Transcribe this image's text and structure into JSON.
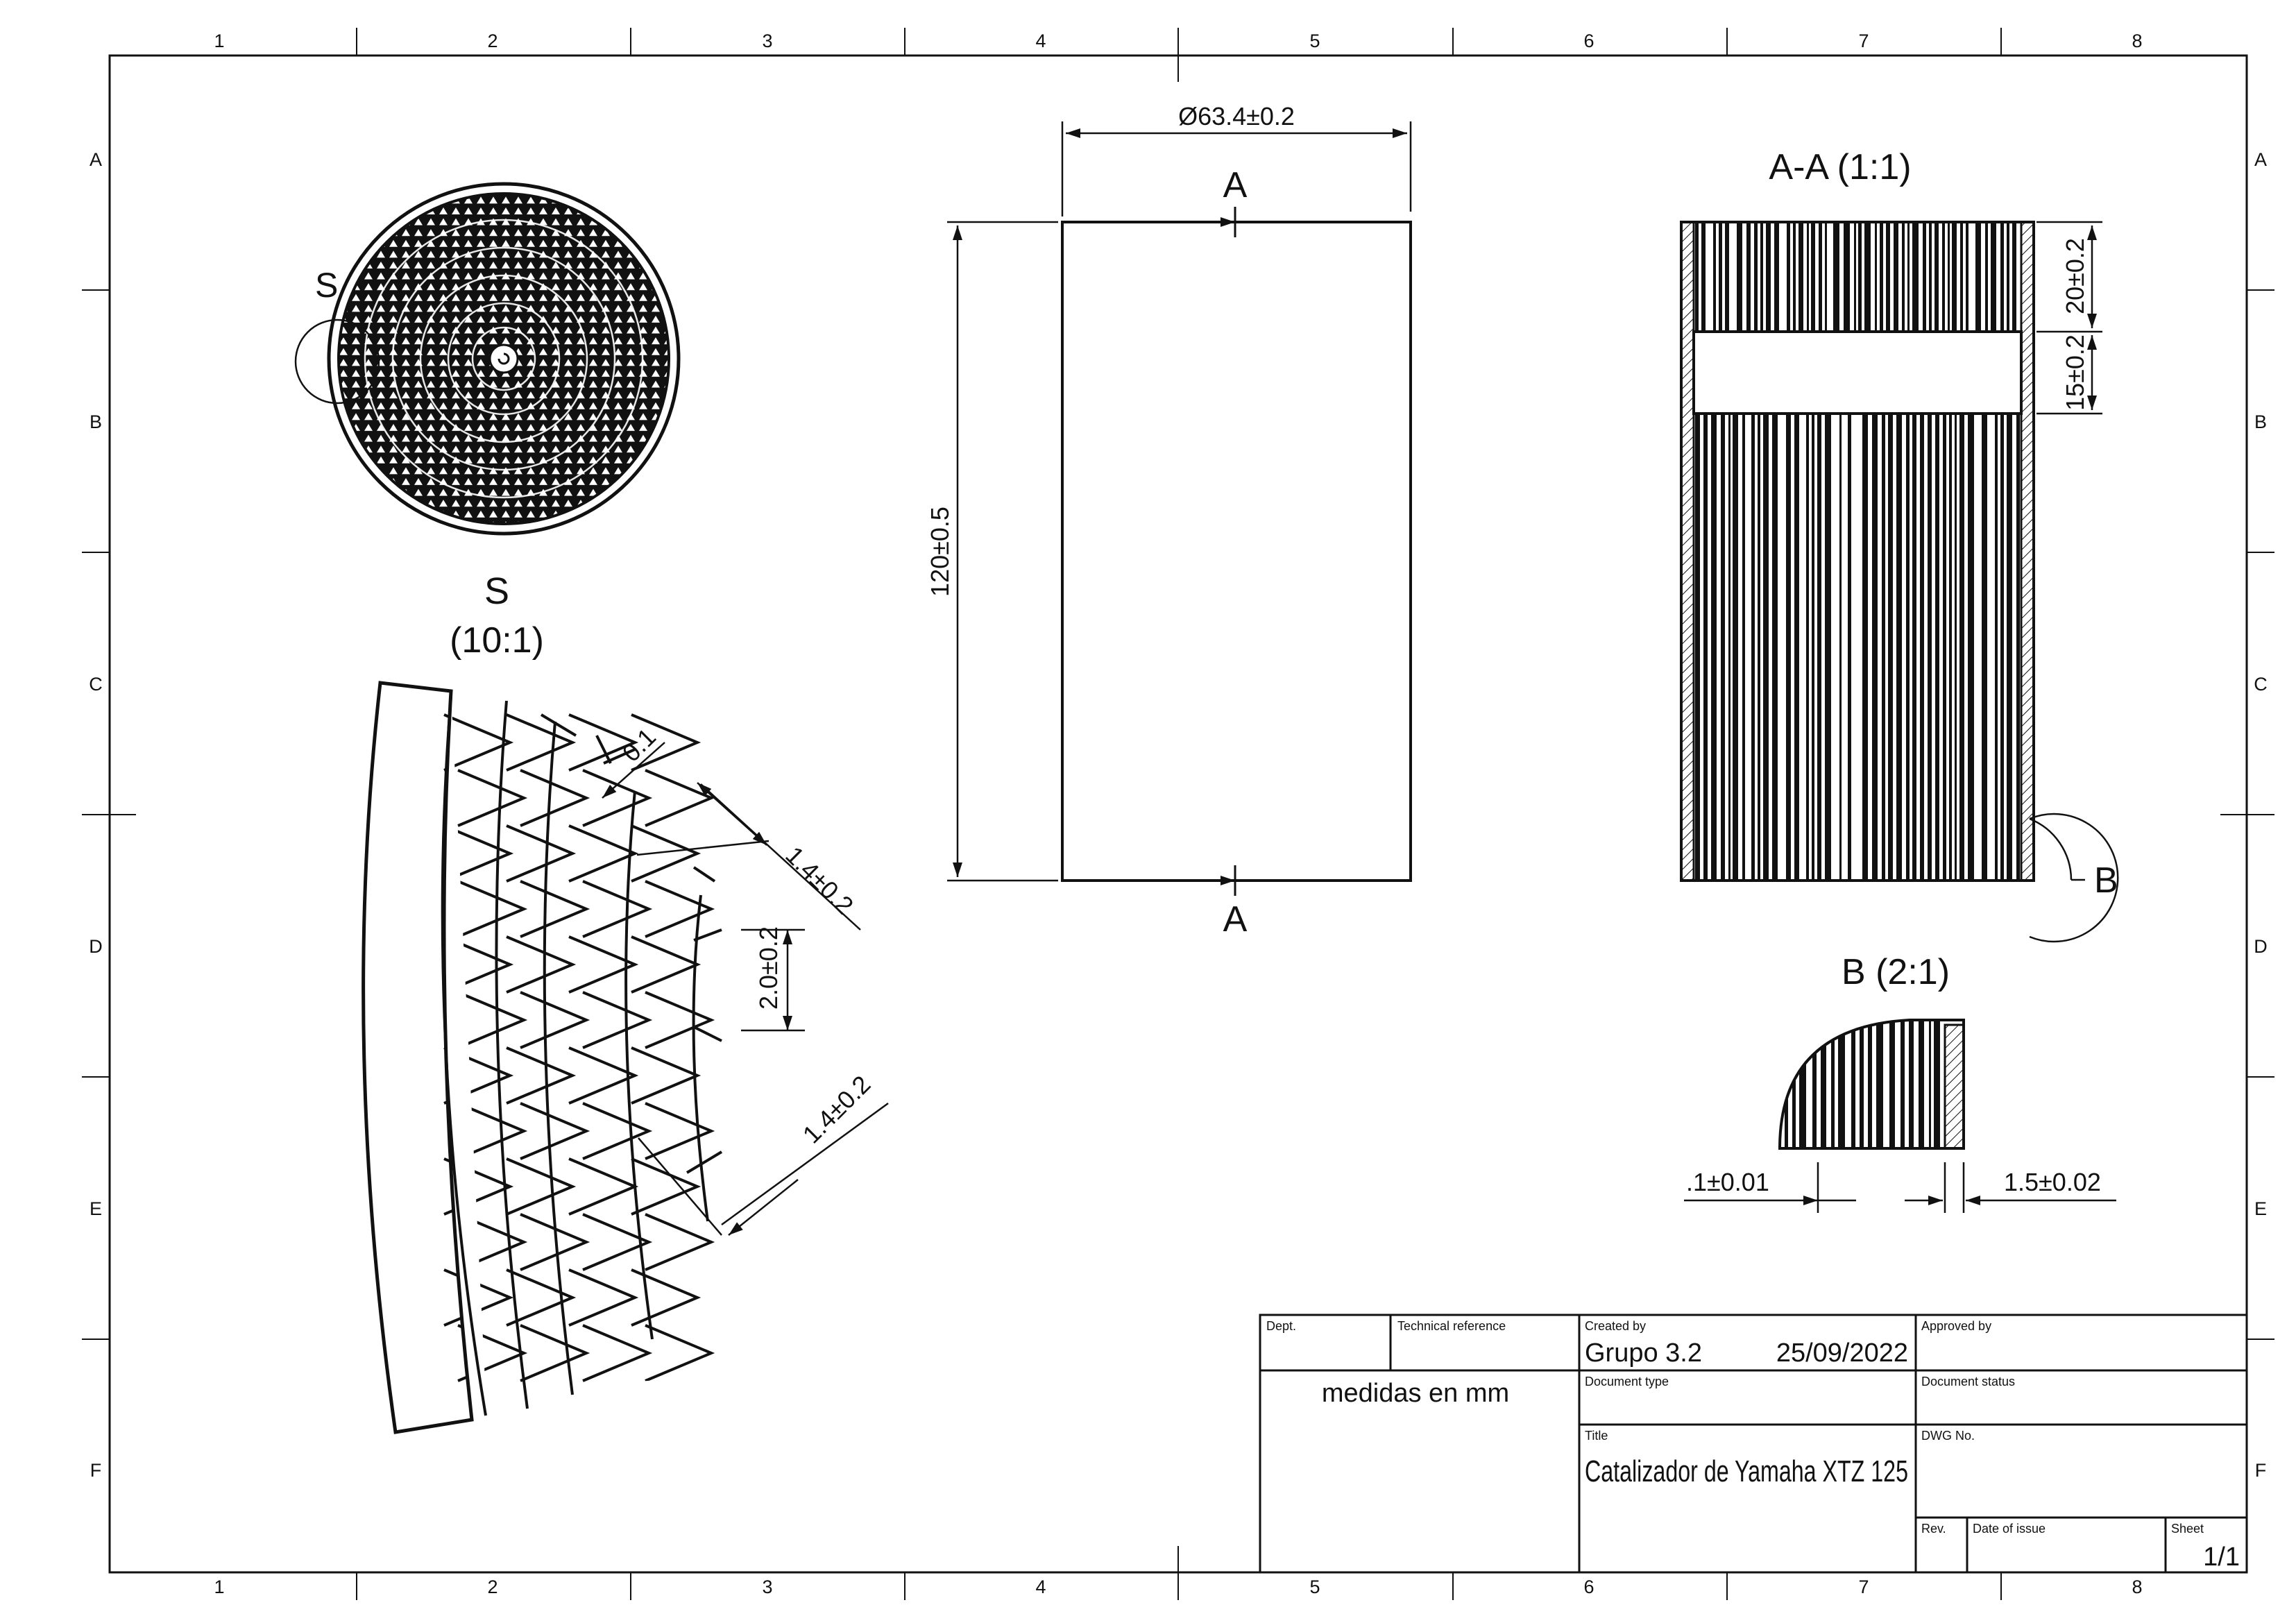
{
  "frame": {
    "columns": [
      "1",
      "2",
      "3",
      "4",
      "5",
      "6",
      "7",
      "8"
    ],
    "rows": [
      "A",
      "B",
      "C",
      "D",
      "E",
      "F"
    ]
  },
  "views": {
    "front": {
      "diameter_dim": "Ø63.4±0.2",
      "height_dim": "120±0.5",
      "section_label_top": "A",
      "section_label_bottom": "A"
    },
    "top": {
      "detail_marker": "S"
    },
    "detail_s": {
      "title_letter": "S",
      "scale": "(10:1)",
      "dim_wall": "0.1",
      "dim_cell_upper": "1.4±0.2",
      "dim_pitch": "2.0±0.2",
      "dim_cell_lower": "1.4±0.2"
    },
    "section_aa": {
      "title": "A-A (1:1)",
      "dim_top": "20±0.2",
      "dim_gap": "15±0.2",
      "detail_marker": "B"
    },
    "detail_b": {
      "title": "B (2:1)",
      "dim_left": ".1±0.01",
      "dim_right": "1.5±0.02"
    }
  },
  "title_block": {
    "dept_label": "Dept.",
    "tech_ref_label": "Technical reference",
    "created_by_label": "Created by",
    "created_by": "Grupo 3.2",
    "date": "25/09/2022",
    "approved_by_label": "Approved by",
    "note": "medidas en mm",
    "document_type_label": "Document type",
    "document_status_label": "Document status",
    "title_label": "Title",
    "title": "Catalizador de Yamaha XTZ 125",
    "dwg_label": "DWG No.",
    "rev_label": "Rev.",
    "date_issue_label": "Date of issue",
    "sheet_label": "Sheet",
    "sheet": "1/1"
  }
}
